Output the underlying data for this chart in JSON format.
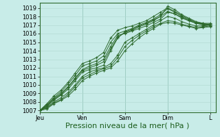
{
  "background_color": "#c8ece8",
  "plot_bg_color": "#c8ece8",
  "grid_minor_color": "#b0d8d0",
  "grid_major_color": "#8abfb5",
  "line_color": "#2d6a2d",
  "marker_color": "#2d6a2d",
  "ylim": [
    1006.8,
    1019.6
  ],
  "yticks": [
    1007,
    1008,
    1009,
    1010,
    1011,
    1012,
    1013,
    1014,
    1015,
    1016,
    1017,
    1018,
    1019
  ],
  "xlabel": "Pression niveau de la mer( hPa )",
  "xlabel_fontsize": 8,
  "tick_fontsize": 6,
  "day_labels": [
    "Jeu",
    "Ven",
    "Sam",
    "Dim",
    "L"
  ],
  "day_positions": [
    0,
    24,
    48,
    72,
    96
  ],
  "xlim": [
    0,
    99
  ],
  "lines": [
    [
      0,
      1007.0,
      4,
      1007.5,
      8,
      1008.2,
      12,
      1008.8,
      16,
      1009.5,
      20,
      1010.5,
      24,
      1011.5,
      28,
      1011.8,
      32,
      1012.0,
      36,
      1012.3,
      40,
      1014.0,
      44,
      1015.5,
      48,
      1016.2,
      52,
      1016.5,
      56,
      1016.9,
      60,
      1017.2,
      64,
      1017.6,
      68,
      1018.0,
      72,
      1019.2,
      76,
      1018.8,
      80,
      1018.2,
      84,
      1017.8,
      88,
      1017.4,
      92,
      1017.2,
      96,
      1017.0
    ],
    [
      0,
      1007.0,
      4,
      1007.4,
      8,
      1008.0,
      12,
      1008.5,
      16,
      1009.1,
      20,
      1010.0,
      24,
      1011.0,
      28,
      1011.5,
      32,
      1011.8,
      36,
      1012.0,
      40,
      1012.5,
      44,
      1013.5,
      48,
      1015.0,
      52,
      1015.5,
      56,
      1016.0,
      60,
      1016.5,
      64,
      1017.0,
      68,
      1017.5,
      72,
      1018.0,
      76,
      1017.8,
      80,
      1017.4,
      84,
      1017.1,
      88,
      1016.9,
      92,
      1016.9,
      96,
      1017.0
    ],
    [
      0,
      1007.0,
      4,
      1007.6,
      8,
      1008.4,
      12,
      1009.0,
      16,
      1009.8,
      20,
      1010.8,
      24,
      1011.8,
      28,
      1012.2,
      32,
      1012.5,
      36,
      1013.0,
      40,
      1014.5,
      44,
      1015.8,
      48,
      1016.0,
      52,
      1016.3,
      56,
      1016.6,
      60,
      1016.9,
      64,
      1017.3,
      68,
      1017.7,
      72,
      1018.5,
      76,
      1018.3,
      80,
      1017.9,
      84,
      1017.5,
      88,
      1017.2,
      92,
      1017.1,
      96,
      1017.1
    ],
    [
      0,
      1007.0,
      4,
      1007.3,
      8,
      1007.9,
      12,
      1008.3,
      16,
      1008.9,
      20,
      1009.8,
      24,
      1010.8,
      28,
      1011.2,
      32,
      1011.6,
      36,
      1011.9,
      40,
      1012.2,
      44,
      1013.2,
      48,
      1014.5,
      52,
      1015.2,
      56,
      1015.8,
      60,
      1016.3,
      64,
      1016.8,
      68,
      1017.2,
      72,
      1017.5,
      76,
      1017.4,
      80,
      1017.1,
      84,
      1016.9,
      88,
      1016.7,
      92,
      1016.8,
      96,
      1016.9
    ],
    [
      0,
      1007.0,
      4,
      1007.7,
      8,
      1008.5,
      12,
      1009.2,
      16,
      1010.1,
      20,
      1011.1,
      24,
      1012.2,
      28,
      1012.5,
      32,
      1012.8,
      36,
      1013.4,
      40,
      1015.0,
      44,
      1016.0,
      48,
      1016.3,
      52,
      1016.6,
      56,
      1017.0,
      60,
      1017.3,
      64,
      1017.7,
      68,
      1018.2,
      72,
      1018.9,
      76,
      1018.5,
      80,
      1018.0,
      84,
      1017.6,
      88,
      1017.3,
      92,
      1017.1,
      96,
      1017.1
    ],
    [
      0,
      1007.0,
      4,
      1007.8,
      8,
      1008.7,
      12,
      1009.4,
      16,
      1010.3,
      20,
      1011.4,
      24,
      1012.5,
      28,
      1012.8,
      32,
      1013.2,
      36,
      1013.8,
      40,
      1015.5,
      44,
      1016.4,
      48,
      1016.7,
      52,
      1016.9,
      56,
      1017.2,
      60,
      1017.5,
      64,
      1018.0,
      68,
      1018.5,
      72,
      1019.0,
      76,
      1018.6,
      80,
      1018.1,
      84,
      1017.7,
      88,
      1017.3,
      92,
      1017.2,
      96,
      1017.2
    ],
    [
      0,
      1007.0,
      4,
      1007.5,
      8,
      1008.3,
      12,
      1008.9,
      16,
      1009.7,
      20,
      1010.7,
      24,
      1011.7,
      28,
      1012.0,
      32,
      1012.3,
      36,
      1012.7,
      40,
      1014.2,
      44,
      1015.6,
      48,
      1016.1,
      52,
      1016.4,
      56,
      1016.8,
      60,
      1017.1,
      64,
      1017.5,
      68,
      1018.0,
      72,
      1018.6,
      76,
      1018.3,
      80,
      1017.8,
      84,
      1017.5,
      88,
      1017.2,
      92,
      1017.0,
      96,
      1017.0
    ],
    [
      0,
      1007.0,
      4,
      1007.2,
      8,
      1007.8,
      12,
      1008.2,
      16,
      1008.7,
      20,
      1009.5,
      24,
      1010.5,
      28,
      1011.0,
      32,
      1011.4,
      36,
      1011.7,
      40,
      1012.0,
      44,
      1012.8,
      48,
      1014.0,
      52,
      1014.8,
      56,
      1015.5,
      60,
      1016.1,
      64,
      1016.6,
      68,
      1017.1,
      72,
      1017.3,
      76,
      1017.2,
      80,
      1017.0,
      84,
      1016.8,
      88,
      1016.6,
      92,
      1016.7,
      96,
      1016.8
    ]
  ]
}
